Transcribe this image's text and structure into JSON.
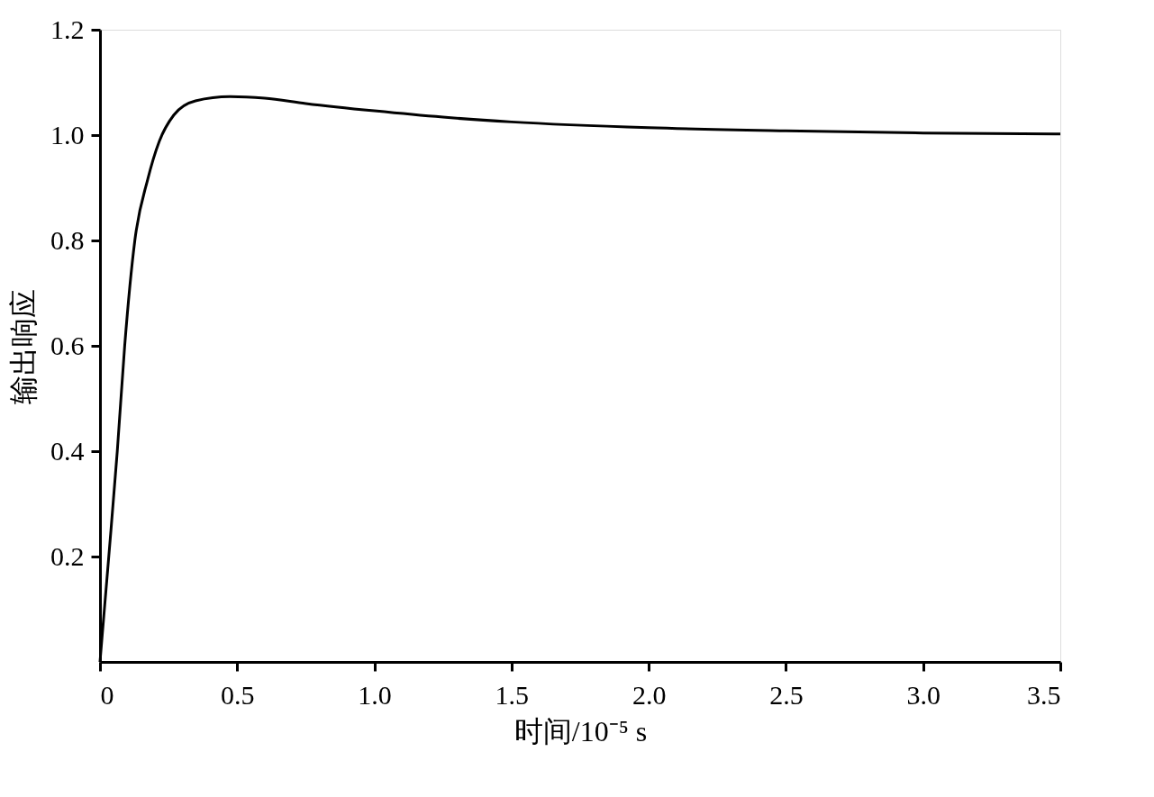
{
  "chart_data": {
    "type": "line",
    "xlabel": "时间/10⁻⁵ s",
    "ylabel": "输出响应",
    "x": [
      0,
      0.032,
      0.063,
      0.09,
      0.127,
      0.174,
      0.216,
      0.269,
      0.348,
      0.474,
      0.6,
      0.75,
      1.0,
      1.25,
      1.5,
      2.0,
      2.5,
      3.0,
      3.5
    ],
    "series": [
      {
        "color": "#000000",
        "values": [
          0,
          0.2,
          0.4,
          0.6,
          0.8,
          0.916,
          0.988,
          1.038,
          1.065,
          1.073,
          1.07,
          1.06,
          1.046,
          1.034,
          1.025,
          1.014,
          1.008,
          1.004,
          1.002
        ]
      }
    ],
    "xlim": [
      0,
      3.5
    ],
    "xticks": [
      0,
      0.5,
      {
        "value": 1,
        "label": "1.0"
      },
      1.5,
      {
        "value": 2,
        "label": "2.0"
      },
      2.5,
      {
        "value": 3,
        "label": "3.0"
      },
      3.5
    ],
    "ylim": [
      0,
      1.2
    ],
    "yticks": [
      0.2,
      0.4,
      0.6,
      0.8,
      {
        "value": 1,
        "label": "1.0"
      },
      1.2
    ],
    "grid": false,
    "marker": "none",
    "line_style": "solid"
  }
}
